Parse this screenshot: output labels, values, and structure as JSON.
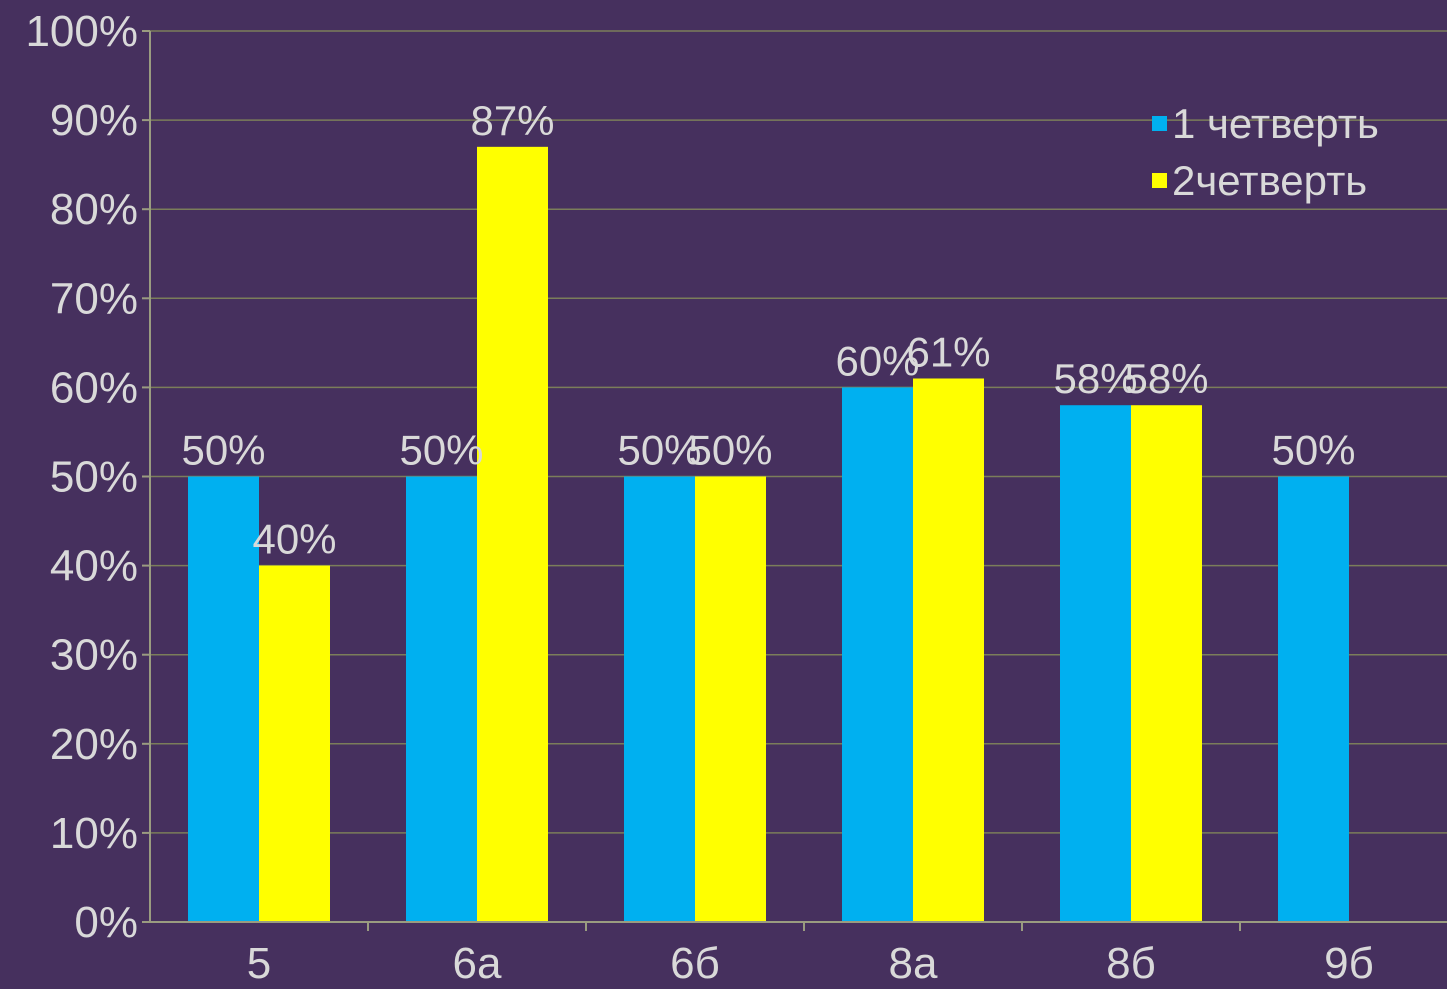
{
  "chart_data": {
    "type": "bar",
    "categories": [
      "5",
      "6а",
      "6б",
      "8а",
      "8б",
      "9б"
    ],
    "series": [
      {
        "name": "1 четверть",
        "color": "#00b0f0",
        "values": [
          50,
          50,
          50,
          60,
          58,
          50
        ],
        "labels": [
          "50%",
          "50%",
          "50%",
          "60%",
          "58%",
          "50%"
        ]
      },
      {
        "name": "2четверть",
        "color": "#ffff00",
        "values": [
          40,
          87,
          50,
          61,
          58,
          null
        ],
        "labels": [
          "40%",
          "87%",
          "50%",
          "61%",
          "58%",
          ""
        ]
      }
    ],
    "yticks": [
      "0%",
      "10%",
      "20%",
      "30%",
      "40%",
      "50%",
      "60%",
      "70%",
      "80%",
      "90%",
      "100%"
    ],
    "ylim": [
      0,
      100
    ],
    "grid": true,
    "legend": "top-right"
  }
}
